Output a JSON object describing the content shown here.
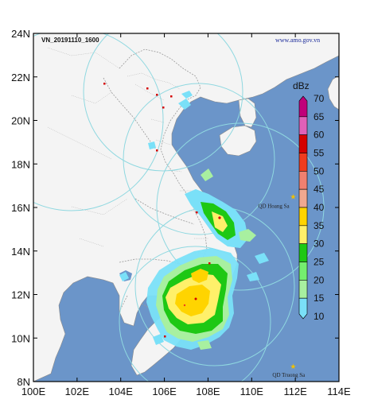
{
  "title": "VN_20191110_1600",
  "website": "www.amo.gov.vn",
  "islands": [
    {
      "label": "QD Hoang Sa",
      "lon": 111.9,
      "lat": 16.5
    },
    {
      "label": "QD Truong Sa",
      "lon": 111.9,
      "lat": 8.7
    }
  ],
  "axes": {
    "lon_ticks": [
      "100E",
      "102E",
      "104E",
      "106E",
      "108E",
      "110E",
      "112E",
      "114E"
    ],
    "lat_ticks": [
      "24N",
      "22N",
      "20N",
      "18N",
      "16N",
      "14N",
      "12N",
      "10N",
      "8N"
    ],
    "lon_range": [
      100,
      114
    ],
    "lat_range": [
      8,
      24
    ]
  },
  "colorbar": {
    "unit": "dBz",
    "levels": [
      "70",
      "65",
      "60",
      "55",
      "50",
      "45",
      "40",
      "35",
      "30",
      "25",
      "20",
      "15",
      "10"
    ],
    "colors": [
      "#c0007a",
      "#e060b8",
      "#d40000",
      "#f03c1e",
      "#f08070",
      "#f0a890",
      "#ffd400",
      "#fff06a",
      "#1ec814",
      "#74ee6e",
      "#a8f0a0",
      "#7ae0f8"
    ]
  },
  "colors": {
    "sea": "#6b95c9",
    "land": "#f4f4f4",
    "border": "#9a9a9a",
    "radar_ring": "#8fd8e0"
  }
}
